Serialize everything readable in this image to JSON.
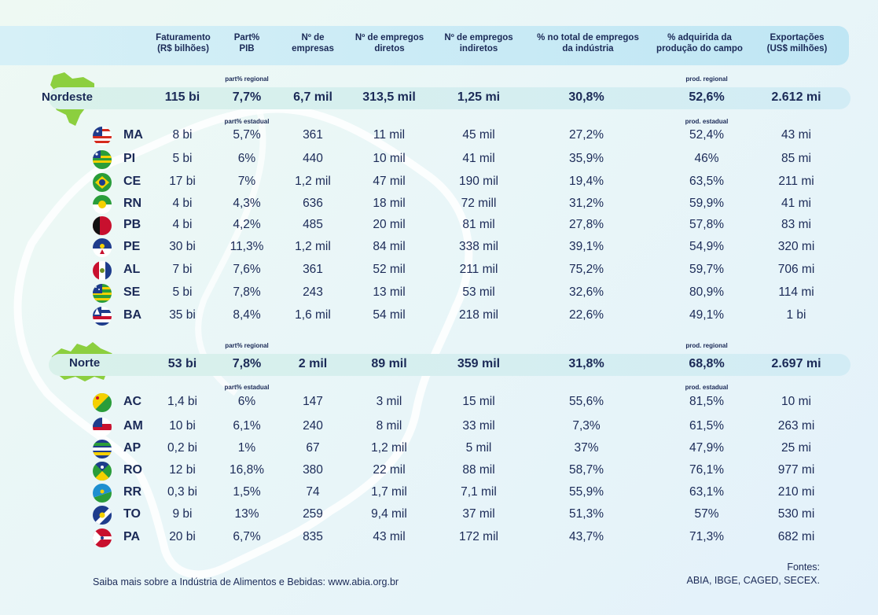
{
  "headers": {
    "faturamento": "Faturamento\n(R$ bilhões)",
    "pib": "Part%\nPIB",
    "empresas": "Nº de\nempresas",
    "diretos": "Nº de empregos\ndiretos",
    "indiretos": "Nº de empregos\nindiretos",
    "total_industria": "% no total de empregos\nda indústria",
    "producao_campo": "% adquirida da\nprodução do campo",
    "exportacoes": "Exportações\n(US$ milhões)"
  },
  "nordeste": {
    "name": "Nordeste",
    "note_pib_regional": "part% regional",
    "note_prod_regional": "prod. regional",
    "note_pib_estadual": "part% estadual",
    "note_prod_estadual": "prod. estadual",
    "summary": [
      "115 bi",
      "7,7%",
      "6,7 mil",
      "313,5 mil",
      "1,25 mi",
      "30,8%",
      "52,6%",
      "2.612 mi"
    ],
    "states": [
      {
        "uf": "MA",
        "flag": "flag-ma",
        "values": [
          "8 bi",
          "5,7%",
          "361",
          "11 mil",
          "45 mil",
          "27,2%",
          "52,4%",
          "43 mi"
        ]
      },
      {
        "uf": "PI",
        "flag": "flag-pi",
        "values": [
          "5 bi",
          "6%",
          "440",
          "10 mil",
          "41 mil",
          "35,9%",
          "46%",
          "85 mi"
        ]
      },
      {
        "uf": "CE",
        "flag": "flag-ce",
        "values": [
          "17 bi",
          "7%",
          "1,2 mil",
          "47 mil",
          "190 mil",
          "19,4%",
          "63,5%",
          "211 mi"
        ]
      },
      {
        "uf": "RN",
        "flag": "flag-rn",
        "values": [
          "4 bi",
          "4,3%",
          "636",
          "18 mil",
          "72 mill",
          "31,2%",
          "59,9%",
          "41 mi"
        ]
      },
      {
        "uf": "PB",
        "flag": "flag-pb",
        "values": [
          "4 bi",
          "4,2%",
          "485",
          "20 mil",
          "81 mil",
          "27,8%",
          "57,8%",
          "83 mi"
        ]
      },
      {
        "uf": "PE",
        "flag": "flag-pe",
        "values": [
          "30 bi",
          "11,3%",
          "1,2 mil",
          "84 mil",
          "338 mil",
          "39,1%",
          "54,9%",
          "320 mi"
        ]
      },
      {
        "uf": "AL",
        "flag": "flag-al",
        "values": [
          "7 bi",
          "7,6%",
          "361",
          "52 mil",
          "211 mil",
          "75,2%",
          "59,7%",
          "706 mi"
        ]
      },
      {
        "uf": "SE",
        "flag": "flag-se",
        "values": [
          "5 bi",
          "7,8%",
          "243",
          "13 mil",
          "53 mil",
          "32,6%",
          "80,9%",
          "114 mi"
        ]
      },
      {
        "uf": "BA",
        "flag": "flag-ba",
        "values": [
          "35 bi",
          "8,4%",
          "1,6 mil",
          "54 mil",
          "218 mil",
          "22,6%",
          "49,1%",
          "1 bi"
        ]
      }
    ]
  },
  "norte": {
    "name": "Norte",
    "note_pib_regional": "part% regional",
    "note_prod_regional": "prod. regional",
    "note_pib_estadual": "part% estadual",
    "note_prod_estadual": "prod. estadual",
    "summary": [
      "53 bi",
      "7,8%",
      "2 mil",
      "89 mil",
      "359 mil",
      "31,8%",
      "68,8%",
      "2.697 mi"
    ],
    "states": [
      {
        "uf": "AC",
        "flag": "flag-ac",
        "values": [
          "1,4 bi",
          "6%",
          "147",
          "3 mil",
          "15 mil",
          "55,6%",
          "81,5%",
          "10 mi"
        ]
      },
      {
        "uf": "AM",
        "flag": "flag-am",
        "values": [
          "10 bi",
          "6,1%",
          "240",
          "8 mil",
          "33 mil",
          "7,3%",
          "61,5%",
          "263 mi"
        ]
      },
      {
        "uf": "AP",
        "flag": "flag-ap",
        "values": [
          "0,2 bi",
          "1%",
          "67",
          "1,2 mil",
          "5 mil",
          "37%",
          "47,9%",
          "25 mi"
        ]
      },
      {
        "uf": "RO",
        "flag": "flag-ro",
        "values": [
          "12 bi",
          "16,8%",
          "380",
          "22 mil",
          "88 mil",
          "58,7%",
          "76,1%",
          "977 mi"
        ]
      },
      {
        "uf": "RR",
        "flag": "flag-rr",
        "values": [
          "0,3 bi",
          "1,5%",
          "74",
          "1,7 mil",
          "7,1 mil",
          "55,9%",
          "63,1%",
          "210 mi"
        ]
      },
      {
        "uf": "TO",
        "flag": "flag-to",
        "values": [
          "9 bi",
          "13%",
          "259",
          "9,4 mil",
          "37 mil",
          "51,3%",
          "57%",
          "530 mi"
        ]
      },
      {
        "uf": "PA",
        "flag": "flag-pa",
        "values": [
          "20 bi",
          "6,7%",
          "835",
          "43 mil",
          "172 mil",
          "43,7%",
          "71,3%",
          "682 mi"
        ]
      }
    ]
  },
  "footer": {
    "saiba_mais": "Saiba mais sobre a Indústria de Alimentos e Bebidas: www.abia.org.br",
    "fontes_label": "Fontes:",
    "fontes": "ABIA, IBGE, CAGED, SECEX."
  },
  "colors": {
    "dark_text": "#1b2a57",
    "region_green": "#8ccf3f",
    "header_blue": "#bfe6f4"
  }
}
